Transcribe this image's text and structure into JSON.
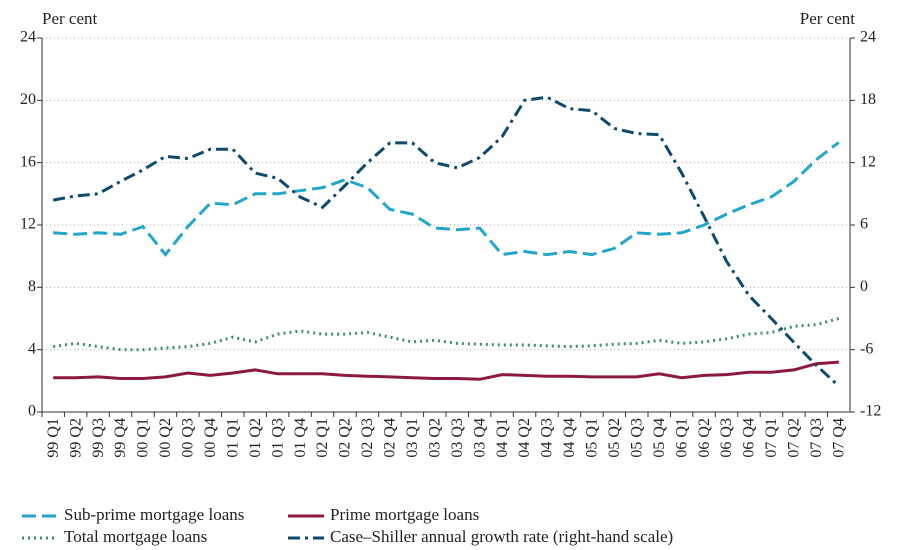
{
  "chart_data": {
    "type": "line",
    "ylabel": "Per cent",
    "y2label": "Per cent",
    "categories": [
      "99 Q1",
      "99 Q2",
      "99 Q3",
      "99 Q4",
      "00 Q1",
      "00 Q2",
      "00 Q3",
      "00 Q4",
      "01 Q1",
      "01 Q2",
      "01 Q3",
      "01 Q4",
      "02 Q1",
      "02 Q2",
      "02 Q3",
      "02 Q4",
      "03 Q1",
      "03 Q2",
      "03 Q3",
      "03 Q4",
      "04 Q1",
      "04 Q2",
      "04 Q3",
      "04 Q4",
      "05 Q1",
      "05 Q2",
      "05 Q3",
      "05 Q4",
      "06 Q1",
      "06 Q2",
      "06 Q3",
      "06 Q4",
      "07 Q1",
      "07 Q2",
      "07 Q3",
      "07 Q4"
    ],
    "ylim": [
      0,
      24
    ],
    "yticks": [
      0,
      4,
      8,
      12,
      16,
      20,
      24
    ],
    "y2lim": [
      -12,
      24
    ],
    "y2ticks": [
      -12,
      -6,
      0,
      6,
      12,
      18,
      24
    ],
    "grid": true,
    "legend": "bottom",
    "series": [
      {
        "name": "Sub-prime mortgage loans",
        "color": "#23a7c8",
        "dash": "dashed",
        "values": [
          11.5,
          11.4,
          11.5,
          11.4,
          11.9,
          10.1,
          11.9,
          13.4,
          13.3,
          14.0,
          14.0,
          14.2,
          14.4,
          14.9,
          14.4,
          13.0,
          12.7,
          11.8,
          11.7,
          11.8,
          10.1,
          10.3,
          10.1,
          10.3,
          10.1,
          10.5,
          11.5,
          11.4,
          11.5,
          12.0,
          12.7,
          13.3,
          13.8,
          14.8,
          16.2,
          17.3
        ]
      },
      {
        "name": "Prime mortgage loans",
        "color": "#8c1a40",
        "dash": "solid",
        "values": [
          2.2,
          2.2,
          2.25,
          2.15,
          2.15,
          2.25,
          2.5,
          2.35,
          2.5,
          2.7,
          2.45,
          2.45,
          2.45,
          2.35,
          2.3,
          2.25,
          2.2,
          2.15,
          2.15,
          2.1,
          2.4,
          2.35,
          2.3,
          2.3,
          2.25,
          2.25,
          2.25,
          2.45,
          2.2,
          2.35,
          2.4,
          2.55,
          2.55,
          2.7,
          3.1,
          3.2
        ]
      },
      {
        "name": "Total mortgage loans",
        "color": "#3d8f6f",
        "dash": "dotted",
        "values": [
          4.2,
          4.4,
          4.2,
          4.0,
          4.0,
          4.1,
          4.2,
          4.4,
          4.8,
          4.5,
          5.0,
          5.2,
          5.0,
          5.0,
          5.1,
          4.8,
          4.5,
          4.6,
          4.4,
          4.35,
          4.3,
          4.3,
          4.25,
          4.2,
          4.25,
          4.35,
          4.4,
          4.6,
          4.4,
          4.5,
          4.7,
          5.0,
          5.1,
          5.5,
          5.6,
          6.0
        ]
      },
      {
        "name": "Case–Shiller annual growth rate (right-hand scale)",
        "color": "#0e4a6c",
        "dash": "dashdot",
        "axis": "y2",
        "values": [
          8.4,
          8.8,
          9.0,
          10.2,
          11.3,
          12.6,
          12.4,
          13.3,
          13.3,
          11.0,
          10.5,
          8.7,
          7.7,
          9.8,
          12.0,
          13.9,
          13.9,
          12.0,
          11.5,
          12.5,
          14.5,
          18.0,
          18.3,
          17.2,
          17.0,
          15.3,
          14.8,
          14.7,
          11.0,
          6.8,
          2.5,
          -0.8,
          -3.0,
          -5.3,
          -7.5,
          -9.5
        ]
      }
    ]
  }
}
